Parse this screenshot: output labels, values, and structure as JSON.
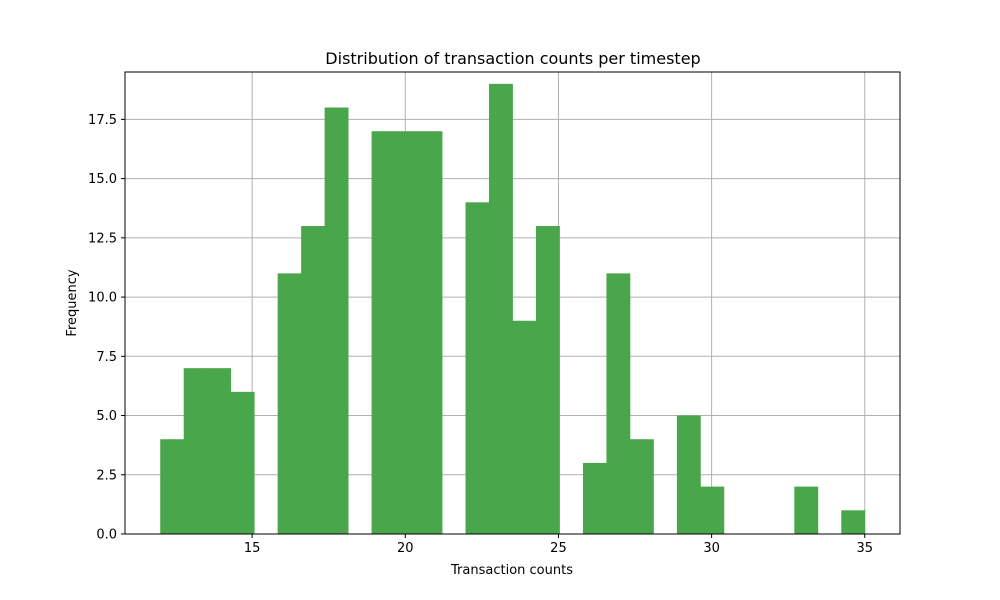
{
  "chart_data": {
    "type": "bar",
    "title": "Distribution of transaction counts per timestep",
    "xlabel": "Transaction counts",
    "ylabel": "Frequency",
    "bin_width": 0.766667,
    "bins": [
      {
        "x": 12.0,
        "value": 4
      },
      {
        "x": 12.766667,
        "value": 7
      },
      {
        "x": 13.533333,
        "value": 7
      },
      {
        "x": 14.3,
        "value": 6
      },
      {
        "x": 15.066667,
        "value": 0
      },
      {
        "x": 15.833333,
        "value": 11
      },
      {
        "x": 16.6,
        "value": 13
      },
      {
        "x": 17.366667,
        "value": 18
      },
      {
        "x": 18.133333,
        "value": 0
      },
      {
        "x": 18.9,
        "value": 17
      },
      {
        "x": 19.666667,
        "value": 17
      },
      {
        "x": 20.433333,
        "value": 17
      },
      {
        "x": 21.2,
        "value": 0
      },
      {
        "x": 21.966667,
        "value": 14
      },
      {
        "x": 22.733333,
        "value": 19
      },
      {
        "x": 23.5,
        "value": 9
      },
      {
        "x": 24.266667,
        "value": 13
      },
      {
        "x": 25.033333,
        "value": 0
      },
      {
        "x": 25.8,
        "value": 3
      },
      {
        "x": 26.566667,
        "value": 11
      },
      {
        "x": 27.333333,
        "value": 4
      },
      {
        "x": 28.1,
        "value": 0
      },
      {
        "x": 28.866667,
        "value": 5
      },
      {
        "x": 29.633333,
        "value": 2
      },
      {
        "x": 30.4,
        "value": 0
      },
      {
        "x": 31.166667,
        "value": 0
      },
      {
        "x": 31.933333,
        "value": 0
      },
      {
        "x": 32.7,
        "value": 2
      },
      {
        "x": 33.466667,
        "value": 0
      },
      {
        "x": 34.233333,
        "value": 1
      }
    ],
    "xlim": [
      10.85,
      36.15
    ],
    "ylim": [
      0,
      19.5
    ],
    "xticks": [
      15,
      20,
      25,
      30,
      35
    ],
    "xtick_labels": [
      "15",
      "20",
      "25",
      "30",
      "35"
    ],
    "yticks": [
      0,
      2.5,
      5,
      7.5,
      10,
      12.5,
      15,
      17.5
    ],
    "ytick_labels": [
      "0.0",
      "2.5",
      "5.0",
      "7.5",
      "10.0",
      "12.5",
      "15.0",
      "17.5"
    ],
    "grid": true,
    "bar_color": "#4aa64a",
    "grid_color": "#b0b0b0"
  }
}
